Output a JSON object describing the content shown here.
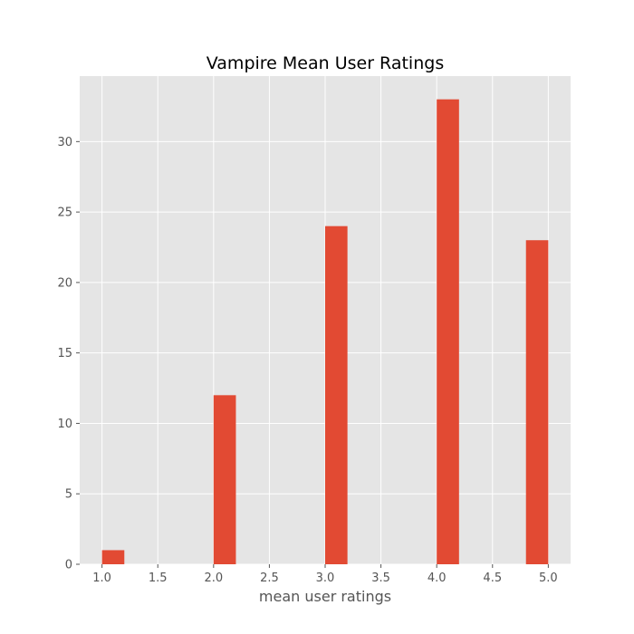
{
  "chart_data": {
    "type": "bar",
    "title": "Vampire Mean User Ratings",
    "xlabel": "mean user ratings",
    "ylabel": "",
    "x": [
      1.0,
      2.0,
      3.0,
      4.0,
      4.8
    ],
    "bar_width": 0.2,
    "values": [
      1,
      12,
      24,
      33,
      23
    ],
    "xlim": [
      0.8,
      5.2
    ],
    "ylim": [
      0,
      34.65
    ],
    "xticks": [
      1.0,
      1.5,
      2.0,
      2.5,
      3.0,
      3.5,
      4.0,
      4.5,
      5.0
    ],
    "xtick_labels": [
      "1.0",
      "1.5",
      "2.0",
      "2.5",
      "3.0",
      "3.5",
      "4.0",
      "4.5",
      "5.0"
    ],
    "yticks": [
      0,
      5,
      10,
      15,
      20,
      25,
      30
    ],
    "ytick_labels": [
      "0",
      "5",
      "10",
      "15",
      "20",
      "25",
      "30"
    ],
    "grid": true,
    "colors": {
      "bar": "#E24A33",
      "plot_background": "#E5E5E5",
      "grid": "#FFFFFF",
      "tick": "#555555"
    }
  }
}
